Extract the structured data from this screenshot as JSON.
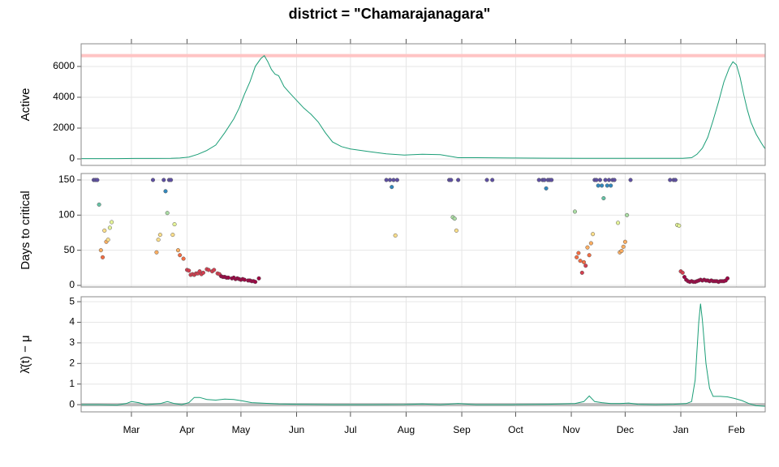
{
  "chart_data": [
    {
      "type": "line",
      "title": "district = \"Chamarajanagara\"",
      "y_label": "Active",
      "color": "#1b9e77",
      "hline": 6700,
      "hline_color": "#ffc4c4",
      "x": [
        0,
        10,
        20,
        30,
        40,
        50,
        55,
        60,
        65,
        70,
        75,
        80,
        85,
        88,
        91,
        94,
        97,
        100,
        102,
        104,
        106,
        108,
        110,
        113,
        116,
        120,
        124,
        128,
        132,
        136,
        140,
        145,
        150,
        160,
        170,
        180,
        185,
        190,
        200,
        205,
        210,
        220,
        240,
        260,
        280,
        300,
        320,
        335,
        340,
        343,
        346,
        349,
        352,
        355,
        358,
        361,
        363,
        365,
        367,
        369,
        371,
        373,
        376,
        379,
        381
      ],
      "values": [
        20,
        20,
        20,
        30,
        30,
        40,
        60,
        120,
        300,
        550,
        900,
        1700,
        2600,
        3300,
        4200,
        5000,
        6000,
        6500,
        6700,
        6300,
        5800,
        5500,
        5400,
        4700,
        4300,
        3800,
        3300,
        2900,
        2400,
        1700,
        1100,
        800,
        650,
        480,
        330,
        250,
        280,
        300,
        280,
        180,
        80,
        80,
        60,
        50,
        40,
        40,
        40,
        40,
        80,
        300,
        700,
        1400,
        2500,
        3700,
        5000,
        5900,
        6300,
        6100,
        5300,
        4200,
        3200,
        2400,
        1600,
        1000,
        650
      ],
      "ylim": [
        -420,
        7470
      ],
      "yticks": [
        0,
        2000,
        4000,
        6000
      ],
      "grid": true
    },
    {
      "type": "scatter",
      "y_label": "Days to critical",
      "palette": [
        "#9e0142",
        "#d53e4f",
        "#f46d43",
        "#fdae61",
        "#fee08b",
        "#e6f598",
        "#abdda4",
        "#66c2a5",
        "#3288bd",
        "#5e4fa2"
      ],
      "x": [
        7,
        8,
        9,
        10,
        11,
        12,
        13,
        14,
        15,
        16,
        17,
        40,
        42,
        43,
        44,
        46,
        47,
        48,
        49,
        50,
        51,
        52,
        54,
        55,
        57,
        59,
        60,
        61,
        62,
        63,
        64,
        65,
        66,
        67,
        68,
        70,
        71,
        73,
        74,
        76,
        77,
        78,
        79,
        80,
        81,
        82,
        84,
        85,
        86,
        87,
        88,
        89,
        90,
        91,
        93,
        94,
        95,
        96,
        97,
        99,
        170,
        172,
        173,
        174,
        175,
        176,
        205,
        206,
        207,
        208,
        209,
        210,
        226,
        229,
        255,
        257,
        258,
        259,
        260,
        261,
        262,
        275,
        276,
        277,
        278,
        279,
        280,
        281,
        282,
        283,
        284,
        285,
        286,
        287,
        288,
        289,
        290,
        291,
        292,
        293,
        294,
        295,
        296,
        297,
        299,
        300,
        301,
        302,
        303,
        304,
        306,
        328,
        330,
        331,
        332,
        333,
        334,
        335,
        336,
        337,
        338,
        339,
        340,
        341,
        342,
        343,
        344,
        345,
        346,
        347,
        348,
        349,
        350,
        351,
        352,
        353,
        354,
        355,
        356,
        357,
        358,
        359,
        360
      ],
      "values": [
        150,
        150,
        150,
        115,
        50,
        40,
        78,
        62,
        65,
        82,
        90,
        150,
        47,
        65,
        72,
        150,
        134,
        103,
        150,
        150,
        72,
        87,
        50,
        43,
        38,
        22,
        21,
        15,
        16,
        15,
        17,
        17,
        20,
        16,
        18,
        23,
        22,
        20,
        22,
        17,
        16,
        13,
        12,
        12,
        11,
        11,
        10,
        11,
        9,
        10,
        9,
        8,
        9,
        8,
        7,
        7,
        6,
        6,
        5,
        10,
        150,
        150,
        140,
        150,
        71,
        150,
        150,
        150,
        97,
        95,
        78,
        150,
        150,
        150,
        150,
        150,
        150,
        138,
        150,
        150,
        150,
        105,
        40,
        46,
        35,
        18,
        33,
        28,
        54,
        43,
        60,
        73,
        150,
        150,
        142,
        150,
        142,
        124,
        150,
        142,
        150,
        142,
        150,
        150,
        89,
        47,
        49,
        55,
        62,
        100,
        150,
        150,
        150,
        150,
        86,
        85,
        20,
        18,
        12,
        8,
        6,
        5,
        6,
        5,
        5,
        6,
        7,
        8,
        7,
        8,
        7,
        7,
        6,
        7,
        6,
        6,
        6,
        5,
        6,
        6,
        6,
        7,
        10
      ],
      "ylim": [
        -2.3,
        159.2
      ],
      "yticks": [
        0,
        50,
        100,
        150
      ],
      "grid": true
    },
    {
      "type": "line",
      "y_label": "λ̂(t) − μ",
      "color": "#1b9e77",
      "hline": 0,
      "hline_color": "#bbbbbb",
      "x": [
        0,
        10,
        20,
        25,
        28,
        32,
        36,
        44,
        48,
        52,
        56,
        60,
        63,
        66,
        70,
        75,
        80,
        85,
        90,
        95,
        100,
        110,
        120,
        140,
        160,
        180,
        190,
        200,
        210,
        220,
        240,
        260,
        275,
        280,
        283,
        286,
        290,
        295,
        300,
        305,
        310,
        320,
        330,
        337,
        340,
        342,
        344,
        345,
        346,
        348,
        350,
        352,
        356,
        360,
        364,
        368,
        372,
        376,
        381
      ],
      "values": [
        0,
        0,
        -0.02,
        0.05,
        0.15,
        0.1,
        0,
        0.05,
        0.15,
        0.05,
        0,
        0.1,
        0.35,
        0.35,
        0.25,
        0.22,
        0.27,
        0.25,
        0.18,
        0.1,
        0.08,
        0.03,
        0.02,
        0,
        0,
        0.01,
        0.03,
        0,
        0.05,
        0,
        0,
        0.02,
        0.05,
        0.15,
        0.42,
        0.15,
        0.1,
        0.05,
        0.05,
        0.08,
        0.02,
        0,
        0.02,
        0.05,
        0.15,
        1.2,
        4.0,
        4.9,
        4.1,
        2.0,
        0.8,
        0.4,
        0.4,
        0.38,
        0.3,
        0.2,
        0.05,
        -0.05,
        -0.08
      ],
      "ylim": [
        -0.35,
        5.24
      ],
      "yticks": [
        0,
        1,
        2,
        3,
        4,
        5
      ],
      "grid": true,
      "xlim": [
        0,
        381
      ],
      "xticks": [
        {
          "value": 28,
          "label": "Mar"
        },
        {
          "value": 59,
          "label": "Apr"
        },
        {
          "value": 89,
          "label": "May"
        },
        {
          "value": 120,
          "label": "Jun"
        },
        {
          "value": 150,
          "label": "Jul"
        },
        {
          "value": 181,
          "label": "Aug"
        },
        {
          "value": 212,
          "label": "Sep"
        },
        {
          "value": 242,
          "label": "Oct"
        },
        {
          "value": 273,
          "label": "Nov"
        },
        {
          "value": 303,
          "label": "Dec"
        },
        {
          "value": 334,
          "label": "Jan"
        },
        {
          "value": 365,
          "label": "Feb"
        }
      ]
    }
  ]
}
